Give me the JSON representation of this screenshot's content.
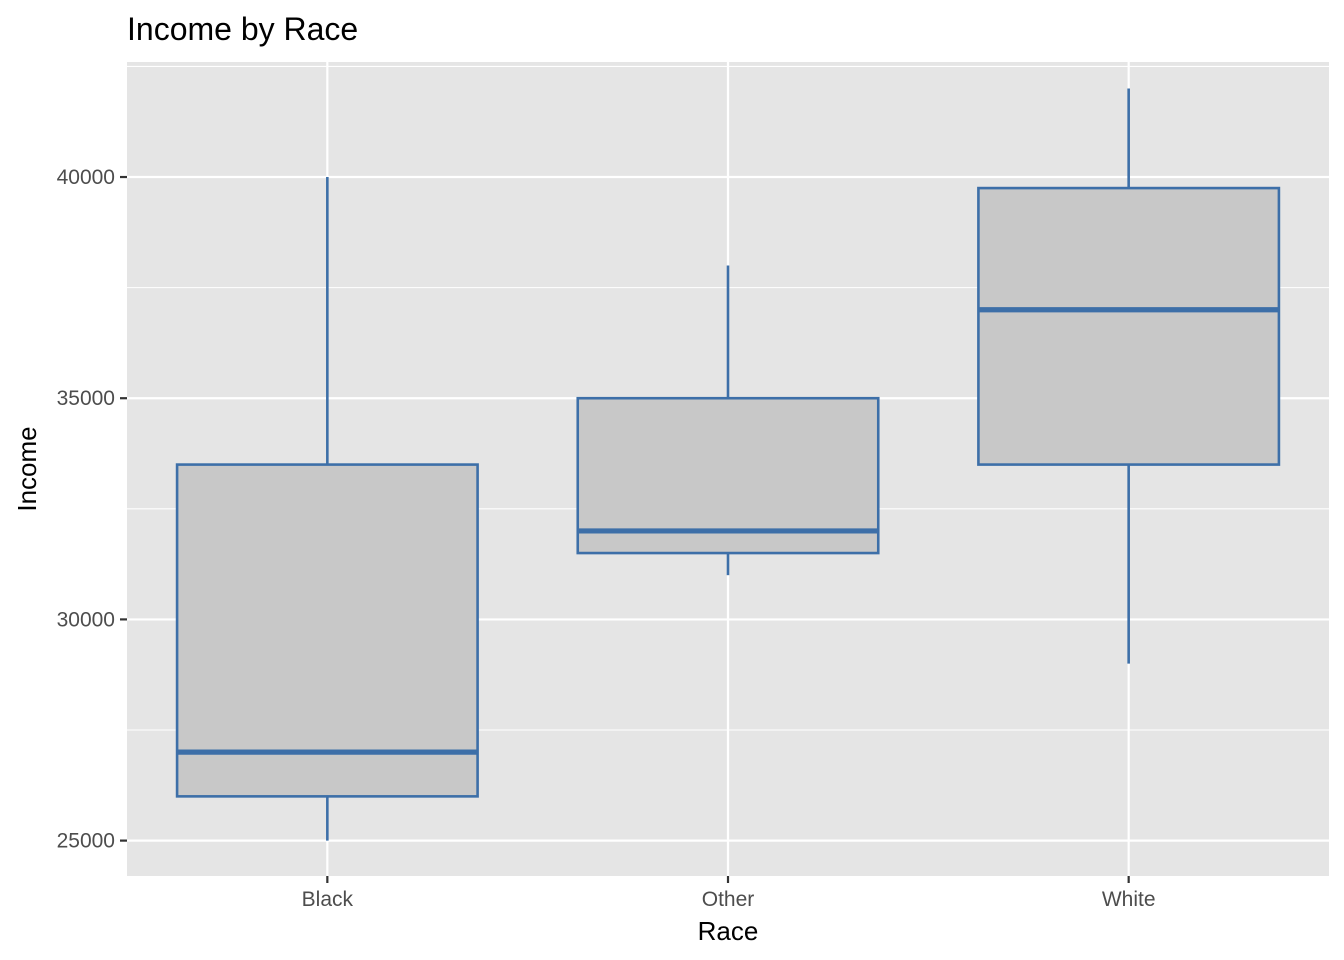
{
  "chart_data": {
    "type": "boxplot",
    "title": "Income by Race",
    "xlabel": "Race",
    "ylabel": "Income",
    "categories": [
      "Black",
      "Other",
      "White"
    ],
    "boxes": [
      {
        "category": "Black",
        "whisker_low": 25000,
        "q1": 26000,
        "median": 27000,
        "q3": 33500,
        "whisker_high": 40000
      },
      {
        "category": "Other",
        "whisker_low": 31000,
        "q1": 31500,
        "median": 32000,
        "q3": 35000,
        "whisker_high": 38000
      },
      {
        "category": "White",
        "whisker_low": 29000,
        "q1": 33500,
        "median": 37000,
        "q3": 39750,
        "whisker_high": 42000
      }
    ],
    "ylim": [
      24200,
      42600
    ],
    "yticks": [
      25000,
      30000,
      35000,
      40000
    ],
    "ytick_labels": [
      "25000",
      "30000",
      "35000",
      "40000"
    ],
    "grid": true,
    "legend": "none",
    "colors": {
      "panel": "#e5e5e5",
      "grid": "#ffffff",
      "box_fill": "#c8c8c8",
      "box_stroke": "#3d6fa8",
      "tick": "#333333"
    }
  }
}
